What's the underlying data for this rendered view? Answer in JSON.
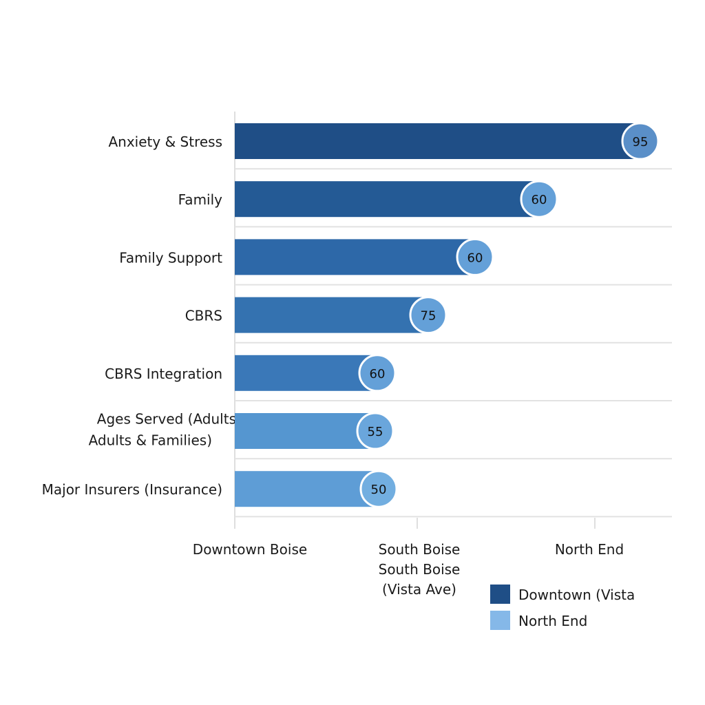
{
  "chart_data": {
    "type": "bar",
    "orientation": "horizontal",
    "title": "",
    "xlabel": "",
    "ylabel": "",
    "categories": [
      [
        "Anxiety & Stress"
      ],
      [
        "Family"
      ],
      [
        "Family Support"
      ],
      [
        "CBRS"
      ],
      [
        "CBRS Integration"
      ],
      [
        "Ages Served (Adults",
        "Adults & Families)"
      ],
      [
        "Major Insurers (Insurance)"
      ]
    ],
    "values": [
      95,
      60,
      60,
      75,
      60,
      55,
      50
    ],
    "bar_colors": [
      "#1f4e86",
      "#245a95",
      "#2d68a8",
      "#3472b0",
      "#3a78b8",
      "#5596d0",
      "#5e9dd6"
    ],
    "label_bubble_colors": [
      "#5a8fc8",
      "#64a0d8",
      "#64a0d8",
      "#64a0d8",
      "#64a0d8",
      "#6aa6dc",
      "#72aee0"
    ],
    "x_tick_labels": [
      [
        "Downtown Boise"
      ],
      [
        "South Boise",
        "South Boise",
        "(Vista Ave)"
      ],
      [
        "North End"
      ]
    ],
    "grid": true,
    "legend": {
      "placement": "bottom-right",
      "entries": [
        {
          "label": "Downtown (Vista",
          "color": "#1f4e86"
        },
        {
          "label": "North End",
          "color": "#85b8e8"
        }
      ]
    }
  }
}
